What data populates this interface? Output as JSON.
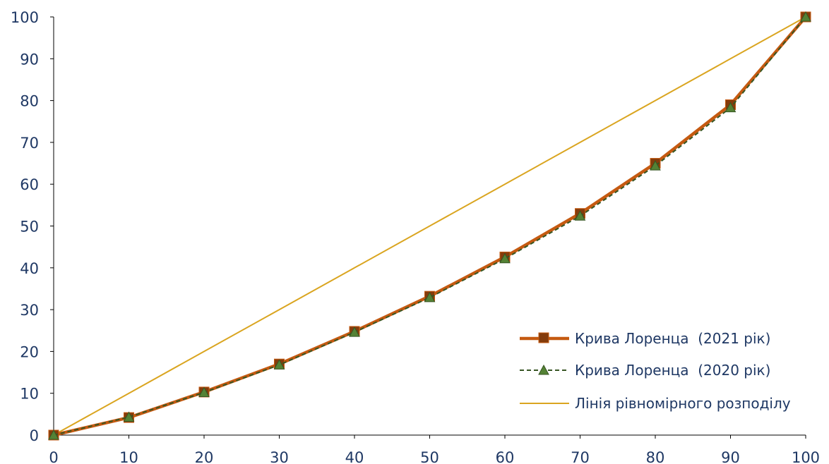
{
  "colors": {
    "series_2021": "#C55A11",
    "series_2021_marker": "#843C0C",
    "series_2020": "#375623",
    "series_2020_marker": "#548235",
    "equality": "#DAA520",
    "text": "#1F3864"
  },
  "chart_data": {
    "type": "line",
    "title": "",
    "xlabel": "",
    "ylabel": "",
    "x": [
      0,
      10,
      20,
      30,
      40,
      50,
      60,
      70,
      80,
      90,
      100
    ],
    "xlim": [
      0,
      100
    ],
    "ylim": [
      0,
      100
    ],
    "xticks": [
      0,
      10,
      20,
      30,
      40,
      50,
      60,
      70,
      80,
      90,
      100
    ],
    "yticks": [
      0,
      10,
      20,
      30,
      40,
      50,
      60,
      70,
      80,
      90,
      100
    ],
    "grid": false,
    "legend_position": "bottom-right",
    "series": [
      {
        "name": "Крива Лоренца  (2021 рік)",
        "style": "solid-thick",
        "marker": "square",
        "values": [
          0,
          4.2,
          10.3,
          17,
          24.8,
          33.2,
          42.6,
          53,
          65,
          79,
          100
        ]
      },
      {
        "name": "Крива Лоренца  (2020 рік)",
        "style": "dashed",
        "marker": "triangle",
        "values": [
          0,
          4.3,
          10.2,
          16.8,
          24.6,
          32.9,
          42.2,
          52.4,
          64.4,
          78.3,
          100
        ]
      },
      {
        "name": "Лінія рівномірного розподілу",
        "style": "solid-thin",
        "marker": "none",
        "values": [
          0,
          10,
          20,
          30,
          40,
          50,
          60,
          70,
          80,
          90,
          100
        ]
      }
    ]
  }
}
